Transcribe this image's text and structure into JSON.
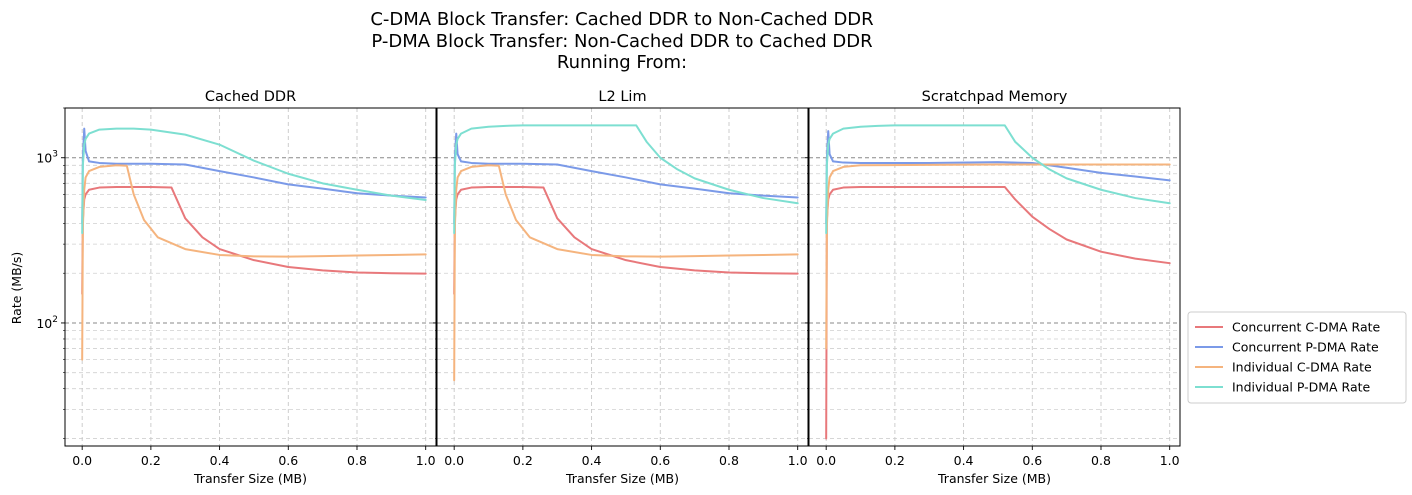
{
  "figure": {
    "title_lines": [
      "C-DMA Block Transfer: Cached DDR to Non-Cached DDR",
      "P-DMA Block Transfer: Non-Cached DDR to Cached DDR",
      "Running From:"
    ]
  },
  "chart_data": {
    "type": "line",
    "shared_ylabel": "Rate (MB/s)",
    "yscale": "log",
    "ylim": [
      18,
      2000
    ],
    "xlim": [
      -0.05,
      1.03
    ],
    "xticks": [
      0.0,
      0.2,
      0.4,
      0.6,
      0.8,
      1.0
    ],
    "xtick_labels": [
      "0.0",
      "0.2",
      "0.4",
      "0.6",
      "0.8",
      "1.0"
    ],
    "yticks": [
      100,
      1000
    ],
    "ytick_labels": [
      "10²",
      "10³"
    ],
    "ytick_base": "10",
    "ytick_exponents": [
      "2",
      "3"
    ],
    "grid": true,
    "legend_position": "right",
    "series_styles": [
      {
        "name": "Concurrent C-DMA Rate",
        "color": "#e8787b"
      },
      {
        "name": "Concurrent P-DMA Rate",
        "color": "#7b9ae8"
      },
      {
        "name": "Individual C-DMA Rate",
        "color": "#f5b47e"
      },
      {
        "name": "Individual P-DMA Rate",
        "color": "#7ddfd1"
      }
    ],
    "panels": [
      {
        "title": "Cached DDR",
        "xlabel": "Transfer Size (MB)",
        "series": [
          {
            "name": "Concurrent C-DMA Rate",
            "x": [
              0.0,
              0.002,
              0.006,
              0.01,
              0.02,
              0.05,
              0.1,
              0.2,
              0.26,
              0.3,
              0.35,
              0.4,
              0.5,
              0.6,
              0.7,
              0.8,
              0.9,
              1.0
            ],
            "y": [
              150,
              420,
              560,
              600,
              640,
              660,
              665,
              665,
              660,
              430,
              330,
              280,
              240,
              218,
              208,
              202,
              200,
              199
            ]
          },
          {
            "name": "Concurrent P-DMA Rate",
            "x": [
              0.0,
              0.002,
              0.006,
              0.01,
              0.02,
              0.05,
              0.1,
              0.2,
              0.3,
              0.4,
              0.5,
              0.6,
              0.7,
              0.8,
              0.9,
              1.0
            ],
            "y": [
              400,
              1000,
              1500,
              1100,
              950,
              930,
              920,
              920,
              910,
              830,
              760,
              690,
              650,
              610,
              590,
              575
            ]
          },
          {
            "name": "Individual C-DMA Rate",
            "x": [
              0.0,
              0.002,
              0.006,
              0.01,
              0.02,
              0.05,
              0.1,
              0.13,
              0.15,
              0.18,
              0.22,
              0.3,
              0.4,
              0.5,
              0.6,
              0.7,
              0.8,
              0.9,
              1.0
            ],
            "y": [
              60,
              380,
              640,
              760,
              830,
              880,
              900,
              895,
              600,
              420,
              330,
              280,
              258,
              253,
              252,
              254,
              256,
              258,
              260
            ]
          },
          {
            "name": "Individual P-DMA Rate",
            "x": [
              0.0,
              0.002,
              0.006,
              0.01,
              0.02,
              0.05,
              0.1,
              0.15,
              0.2,
              0.3,
              0.4,
              0.5,
              0.6,
              0.7,
              0.8,
              0.9,
              1.0
            ],
            "y": [
              350,
              900,
              1200,
              1300,
              1400,
              1480,
              1500,
              1500,
              1480,
              1380,
              1200,
              960,
              800,
              700,
              640,
              590,
              555
            ]
          }
        ]
      },
      {
        "title": "L2 Lim",
        "xlabel": "Transfer Size (MB)",
        "series": [
          {
            "name": "Concurrent C-DMA Rate",
            "x": [
              0.0,
              0.002,
              0.006,
              0.01,
              0.02,
              0.05,
              0.1,
              0.2,
              0.26,
              0.3,
              0.35,
              0.4,
              0.5,
              0.6,
              0.7,
              0.8,
              0.9,
              1.0
            ],
            "y": [
              150,
              420,
              560,
              600,
              640,
              660,
              665,
              665,
              660,
              430,
              330,
              280,
              240,
              218,
              208,
              202,
              200,
              199
            ]
          },
          {
            "name": "Concurrent P-DMA Rate",
            "x": [
              0.0,
              0.002,
              0.006,
              0.01,
              0.02,
              0.05,
              0.1,
              0.2,
              0.3,
              0.4,
              0.5,
              0.6,
              0.7,
              0.8,
              0.9,
              1.0
            ],
            "y": [
              400,
              1000,
              1400,
              1050,
              950,
              930,
              920,
              920,
              910,
              830,
              760,
              690,
              650,
              610,
              590,
              575
            ]
          },
          {
            "name": "Individual C-DMA Rate",
            "x": [
              0.0,
              0.002,
              0.006,
              0.01,
              0.02,
              0.05,
              0.1,
              0.13,
              0.15,
              0.18,
              0.22,
              0.3,
              0.4,
              0.5,
              0.6,
              0.7,
              0.8,
              0.9,
              1.0
            ],
            "y": [
              45,
              380,
              640,
              760,
              830,
              880,
              900,
              895,
              600,
              420,
              330,
              280,
              258,
              253,
              252,
              254,
              256,
              258,
              260
            ]
          },
          {
            "name": "Individual P-DMA Rate",
            "x": [
              0.0,
              0.002,
              0.006,
              0.01,
              0.02,
              0.05,
              0.1,
              0.15,
              0.2,
              0.3,
              0.4,
              0.5,
              0.53,
              0.56,
              0.6,
              0.65,
              0.7,
              0.8,
              0.9,
              1.0
            ],
            "y": [
              350,
              900,
              1200,
              1300,
              1400,
              1500,
              1540,
              1560,
              1570,
              1570,
              1570,
              1570,
              1570,
              1250,
              1000,
              850,
              750,
              640,
              570,
              530
            ]
          }
        ]
      },
      {
        "title": "Scratchpad Memory",
        "xlabel": "Transfer Size (MB)",
        "series": [
          {
            "name": "Concurrent C-DMA Rate",
            "x": [
              0.0,
              0.002,
              0.006,
              0.01,
              0.02,
              0.05,
              0.1,
              0.3,
              0.52,
              0.55,
              0.6,
              0.65,
              0.7,
              0.8,
              0.9,
              1.0
            ],
            "y": [
              20,
              420,
              560,
              600,
              640,
              660,
              665,
              665,
              665,
              560,
              440,
              370,
              320,
              270,
              245,
              230
            ]
          },
          {
            "name": "Concurrent P-DMA Rate",
            "x": [
              0.0,
              0.002,
              0.006,
              0.01,
              0.02,
              0.05,
              0.1,
              0.3,
              0.5,
              0.6,
              0.7,
              0.8,
              0.9,
              1.0
            ],
            "y": [
              400,
              1000,
              1450,
              1050,
              950,
              935,
              930,
              930,
              940,
              930,
              870,
              810,
              770,
              730
            ]
          },
          {
            "name": "Individual C-DMA Rate",
            "x": [
              0.0,
              0.002,
              0.006,
              0.01,
              0.02,
              0.05,
              0.1,
              0.3,
              0.5,
              0.7,
              1.0
            ],
            "y": [
              70,
              380,
              640,
              760,
              830,
              880,
              900,
              905,
              910,
              910,
              910
            ]
          },
          {
            "name": "Individual P-DMA Rate",
            "x": [
              0.0,
              0.002,
              0.006,
              0.01,
              0.02,
              0.05,
              0.1,
              0.15,
              0.2,
              0.3,
              0.4,
              0.5,
              0.52,
              0.55,
              0.6,
              0.65,
              0.7,
              0.8,
              0.9,
              1.0
            ],
            "y": [
              350,
              900,
              1200,
              1300,
              1400,
              1500,
              1540,
              1560,
              1570,
              1570,
              1570,
              1570,
              1570,
              1250,
              1000,
              850,
              750,
              640,
              570,
              530
            ]
          }
        ]
      }
    ]
  }
}
